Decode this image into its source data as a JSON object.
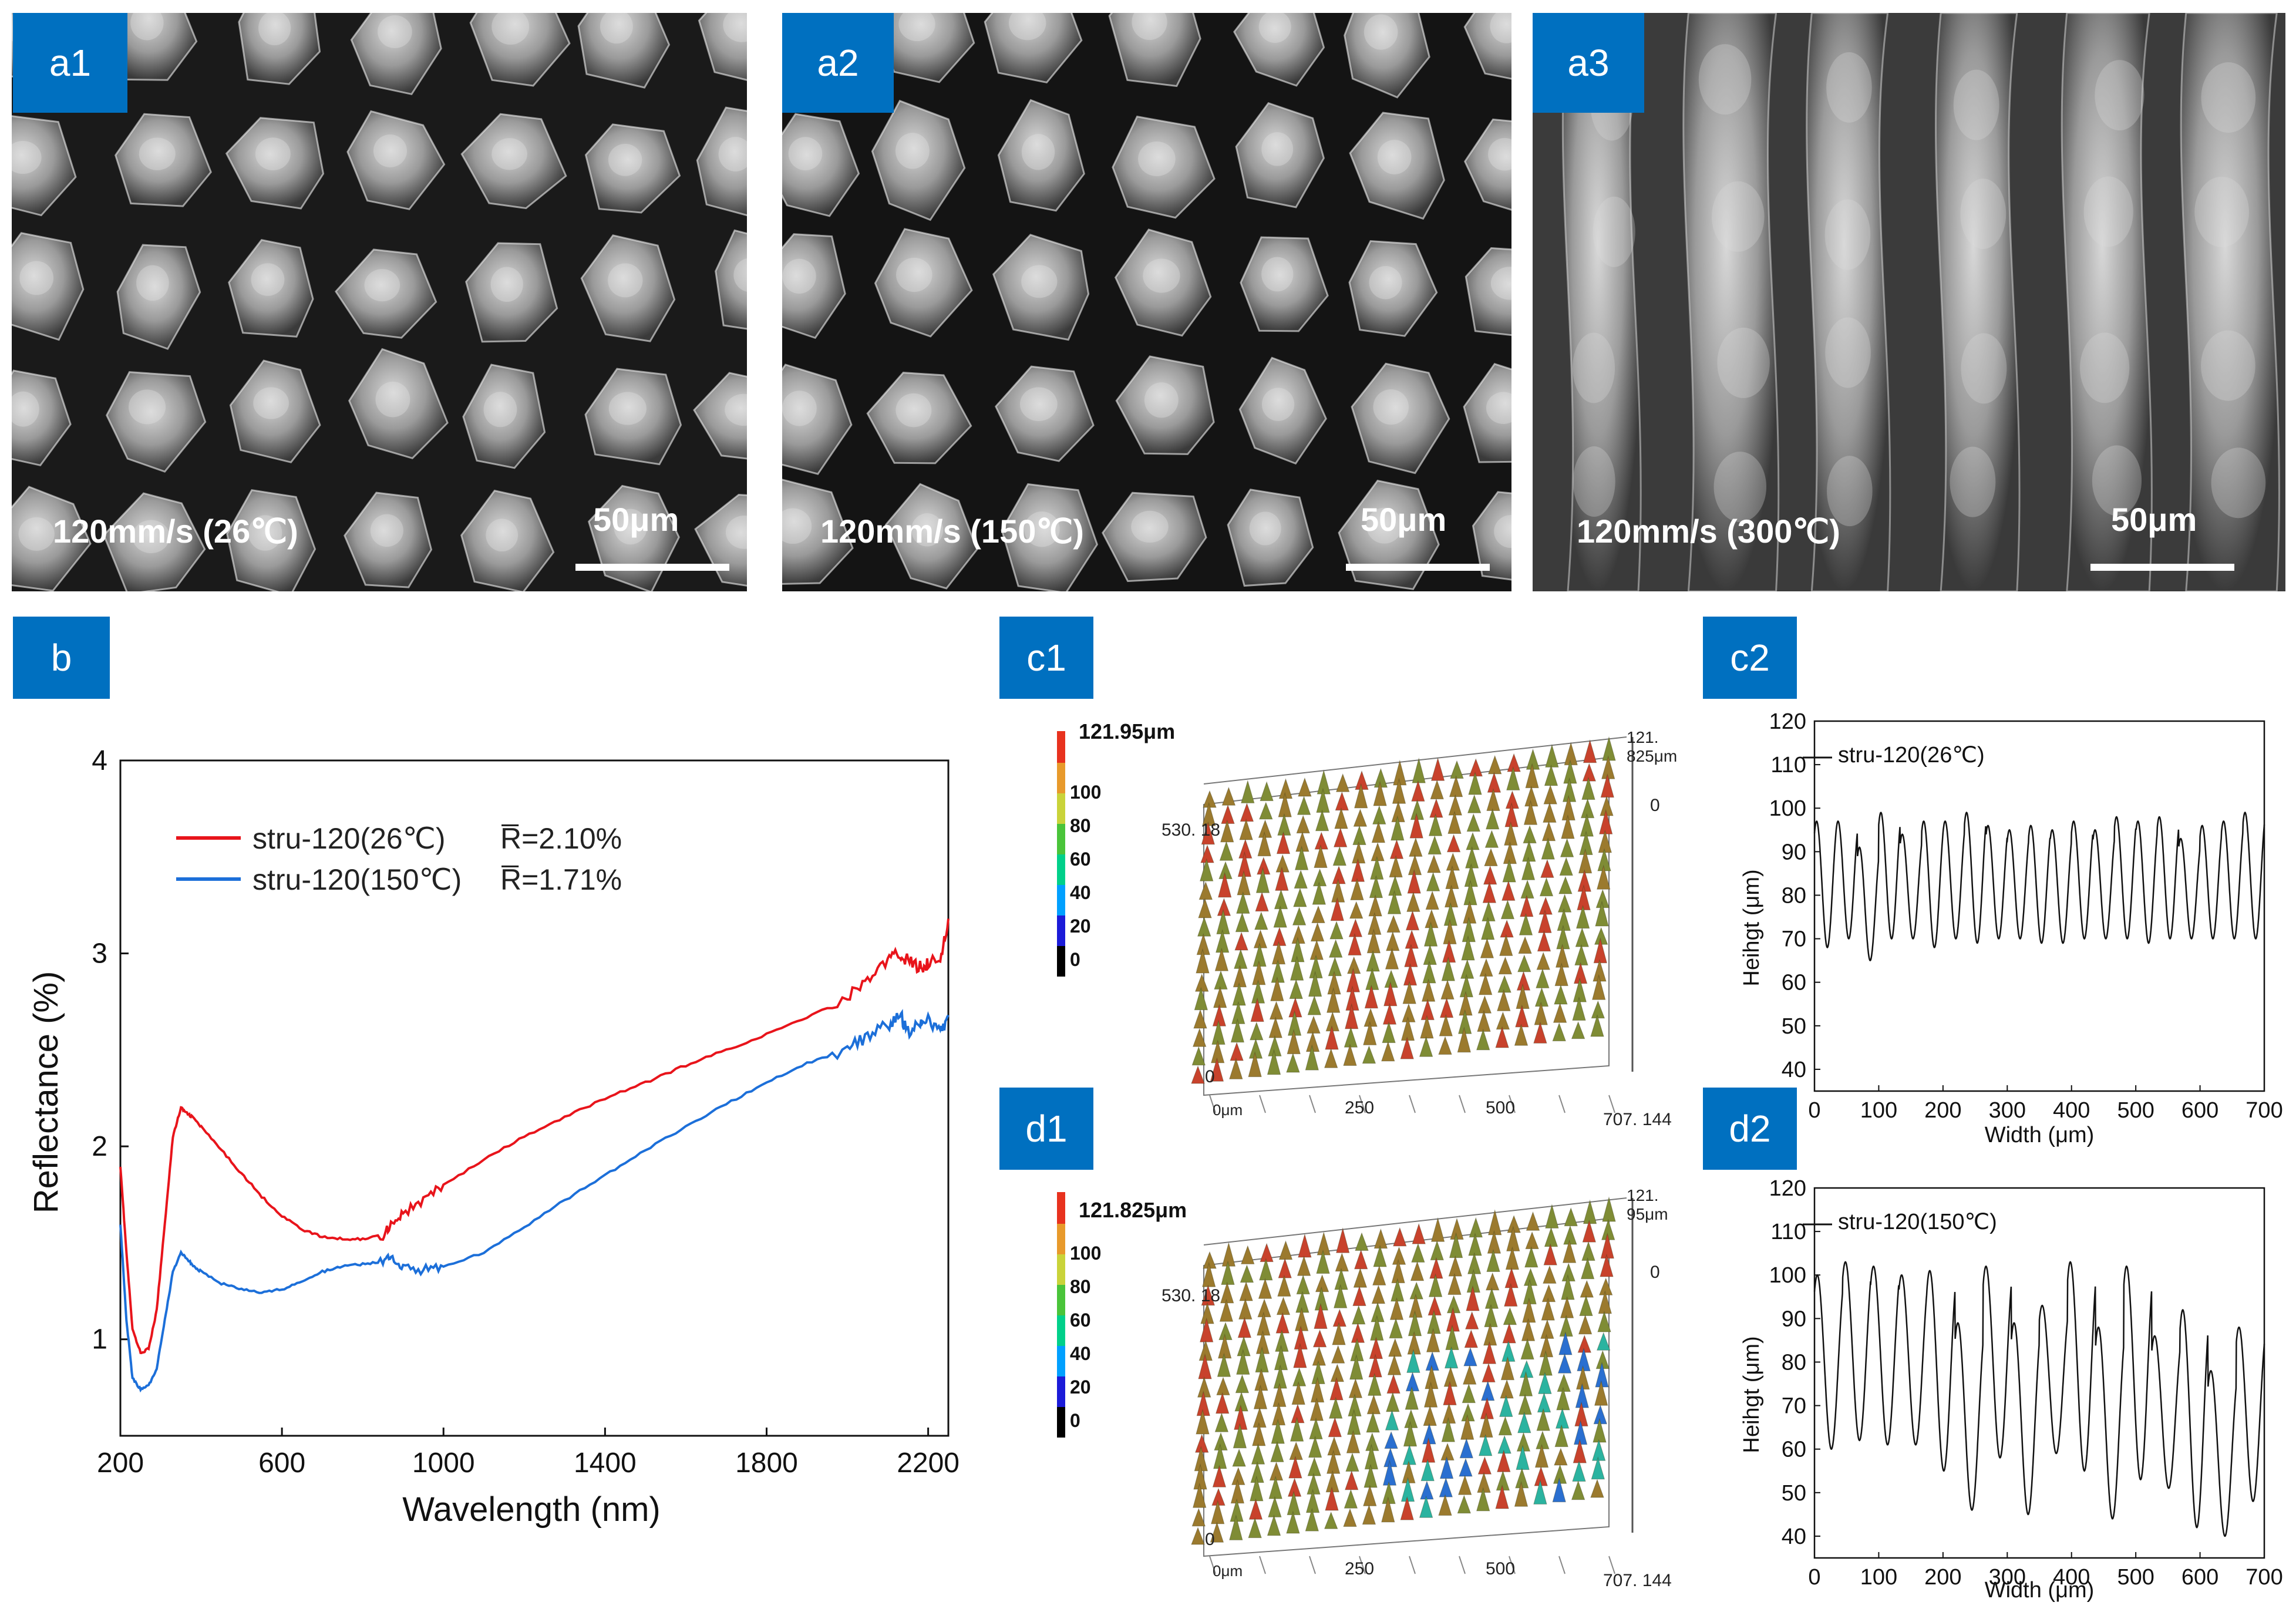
{
  "colors": {
    "tag_blue": "#0070C0",
    "red_series": "#E8141B",
    "blue_series": "#1C6FD9",
    "profile_line": "#111111"
  },
  "sem_panels": [
    {
      "tag": "a1",
      "condition": "120mm/s (26℃)",
      "scale_label": "50μm",
      "morphology": "cones"
    },
    {
      "tag": "a2",
      "condition": "120mm/s (150℃)",
      "scale_label": "50μm",
      "morphology": "cones"
    },
    {
      "tag": "a3",
      "condition": "120mm/s (300℃)",
      "scale_label": "50μm",
      "morphology": "ridges"
    }
  ],
  "panel_b": {
    "tag": "b",
    "chart_data": {
      "type": "line",
      "xlabel": "Wavelength (nm)",
      "ylabel": "Reflectance (%)",
      "xlim": [
        200,
        2250
      ],
      "ylim": [
        0.5,
        4
      ],
      "xticks": [
        200,
        600,
        1000,
        1400,
        1800,
        2200
      ],
      "yticks": [
        1,
        2,
        3,
        4
      ],
      "legend": [
        {
          "name": "stru-120(26℃)",
          "avg_label": "R̅=2.10%"
        },
        {
          "name": "stru-120(150℃)",
          "avg_label": "R̅=1.71%"
        }
      ],
      "series": [
        {
          "name": "stru-120(26℃)",
          "x": [
            200,
            215,
            230,
            250,
            270,
            290,
            310,
            330,
            350,
            365,
            380,
            400,
            450,
            500,
            550,
            600,
            650,
            700,
            750,
            800,
            850,
            870,
            900,
            950,
            1000,
            1100,
            1200,
            1300,
            1400,
            1500,
            1600,
            1700,
            1800,
            1900,
            2000,
            2050,
            2100,
            2130,
            2150,
            2180,
            2200,
            2230,
            2250
          ],
          "y": [
            1.9,
            1.45,
            1.05,
            0.93,
            0.95,
            1.15,
            1.6,
            2.05,
            2.2,
            2.17,
            2.15,
            2.1,
            1.98,
            1.86,
            1.74,
            1.64,
            1.57,
            1.53,
            1.52,
            1.52,
            1.54,
            1.6,
            1.65,
            1.72,
            1.8,
            1.93,
            2.05,
            2.15,
            2.25,
            2.33,
            2.42,
            2.5,
            2.58,
            2.67,
            2.77,
            2.87,
            2.96,
            3.0,
            2.96,
            2.93,
            2.95,
            2.97,
            3.18
          ]
        },
        {
          "name": "stru-120(150℃)",
          "x": [
            200,
            215,
            230,
            250,
            270,
            290,
            310,
            330,
            350,
            365,
            380,
            400,
            450,
            500,
            550,
            600,
            650,
            700,
            750,
            800,
            850,
            870,
            900,
            950,
            1000,
            1100,
            1200,
            1300,
            1400,
            1500,
            1600,
            1700,
            1800,
            1900,
            2000,
            2050,
            2100,
            2130,
            2150,
            2180,
            2200,
            2230,
            2250
          ],
          "y": [
            1.6,
            1.1,
            0.8,
            0.74,
            0.76,
            0.85,
            1.1,
            1.35,
            1.45,
            1.42,
            1.38,
            1.35,
            1.29,
            1.26,
            1.24,
            1.26,
            1.3,
            1.35,
            1.38,
            1.39,
            1.4,
            1.42,
            1.37,
            1.36,
            1.38,
            1.45,
            1.58,
            1.72,
            1.85,
            1.98,
            2.1,
            2.22,
            2.33,
            2.43,
            2.5,
            2.57,
            2.63,
            2.68,
            2.6,
            2.62,
            2.65,
            2.58,
            2.68
          ]
        }
      ]
    }
  },
  "panel_c1": {
    "tag": "c1",
    "colorbar_max": "121.95μm",
    "colorbar_ticks": [
      "100",
      "80",
      "60",
      "40",
      "20",
      "0"
    ],
    "axis_labels": [
      "530. 18",
      "0",
      "0μm",
      "250",
      "500",
      "707. 144",
      "121. 825μm",
      "0"
    ]
  },
  "panel_d1": {
    "tag": "d1",
    "colorbar_max": "121.825μm",
    "colorbar_ticks": [
      "100",
      "80",
      "60",
      "40",
      "20",
      "0"
    ],
    "axis_labels": [
      "530. 18",
      "0",
      "0μm",
      "250",
      "500",
      "707. 144",
      "121. 95μm",
      "0"
    ]
  },
  "panel_c2": {
    "tag": "c2",
    "chart_data": {
      "type": "line",
      "title": "",
      "legend": "stru-120(26℃)",
      "xlabel": "Width (μm)",
      "ylabel": "Heihgt (μm)",
      "xlim": [
        0,
        700
      ],
      "ylim": [
        35,
        120
      ],
      "xticks": [
        0,
        100,
        200,
        300,
        400,
        500,
        600,
        700
      ],
      "yticks": [
        40,
        50,
        60,
        70,
        80,
        90,
        100,
        110,
        120
      ],
      "peaks": [
        97,
        97,
        91,
        99,
        94,
        97,
        97,
        99,
        96,
        95,
        96,
        95,
        97,
        95,
        98,
        97,
        98,
        93,
        96,
        97,
        99
      ],
      "valleys": [
        68,
        70,
        65,
        70,
        70,
        68,
        70,
        69,
        70,
        70,
        69,
        69,
        70,
        70,
        70,
        69,
        70,
        70,
        70,
        70,
        70
      ]
    }
  },
  "panel_d2": {
    "tag": "d2",
    "chart_data": {
      "type": "line",
      "title": "",
      "legend": "stru-120(150℃)",
      "xlabel": "Width (μm)",
      "ylabel": "Heihgt (μm)",
      "xlim": [
        0,
        700
      ],
      "ylim": [
        35,
        120
      ],
      "xticks": [
        0,
        100,
        200,
        300,
        400,
        500,
        600,
        700
      ],
      "yticks": [
        40,
        50,
        60,
        70,
        80,
        90,
        100,
        110,
        120
      ],
      "peaks": [
        100,
        103,
        102,
        100,
        101,
        89,
        102,
        89,
        93,
        103,
        88,
        102,
        86,
        92,
        78,
        88
      ],
      "valleys": [
        60,
        62,
        61,
        61,
        55,
        46,
        58,
        45,
        59,
        55,
        44,
        53,
        51,
        42,
        40,
        48
      ]
    }
  }
}
